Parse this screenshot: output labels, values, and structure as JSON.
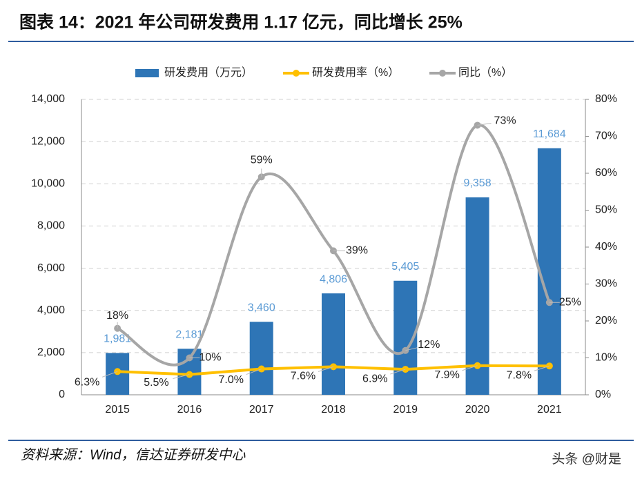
{
  "chart_data": {
    "type": "bar-line",
    "title": "图表 14：2021 年公司研发费用 1.17 亿元，同比增长 25%",
    "source": "资料来源：Wind，信达证券研发中心",
    "watermark": "头条 @财是",
    "categories": [
      "2015",
      "2016",
      "2017",
      "2018",
      "2019",
      "2020",
      "2021"
    ],
    "series": [
      {
        "name": "研发费用（万元）",
        "type": "bar",
        "color": "#2e75b6",
        "label_color": "#5b9bd5",
        "values": [
          1981,
          2181,
          3460,
          4806,
          5405,
          9358,
          11684
        ],
        "value_labels": [
          "1,981",
          "2,181",
          "3,460",
          "4,806",
          "5,405",
          "9,358",
          "11,684"
        ]
      },
      {
        "name": "研发费用率（%）",
        "type": "line",
        "axis": "y2",
        "color": "#ffc000",
        "values": [
          6.3,
          5.5,
          7.0,
          7.6,
          6.9,
          7.9,
          7.8
        ],
        "value_labels": [
          "6.3%",
          "5.5%",
          "7.0%",
          "7.6%",
          "6.9%",
          "7.9%",
          "7.8%"
        ]
      },
      {
        "name": "同比（%）",
        "type": "line",
        "axis": "y2",
        "color": "#a6a6a6",
        "smooth": true,
        "values": [
          18,
          10,
          59,
          39,
          12,
          73,
          25
        ],
        "value_labels": [
          "18%",
          "10%",
          "59%",
          "39%",
          "12%",
          "73%",
          "25%"
        ]
      }
    ],
    "ylim": [
      0,
      14000
    ],
    "yticks": [
      0,
      {
        "value": 2000,
        "label": "2,000"
      },
      {
        "value": 4000,
        "label": "4,000"
      },
      {
        "value": 6000,
        "label": "6,000"
      },
      {
        "value": 8000,
        "label": "8,000"
      },
      {
        "value": 10000,
        "label": "10,000"
      },
      {
        "value": 12000,
        "label": "12,000"
      },
      {
        "value": 14000,
        "label": "14,000"
      }
    ],
    "y2lim": [
      0,
      80
    ],
    "y2ticks": [
      {
        "value": 0,
        "label": "0%"
      },
      {
        "value": 10,
        "label": "10%"
      },
      {
        "value": 20,
        "label": "20%"
      },
      {
        "value": 30,
        "label": "30%"
      },
      {
        "value": 40,
        "label": "40%"
      },
      {
        "value": 50,
        "label": "50%"
      },
      {
        "value": 60,
        "label": "60%"
      },
      {
        "value": 70,
        "label": "70%"
      },
      {
        "value": 80,
        "label": "80%"
      }
    ],
    "grid": true,
    "legend": "top"
  }
}
